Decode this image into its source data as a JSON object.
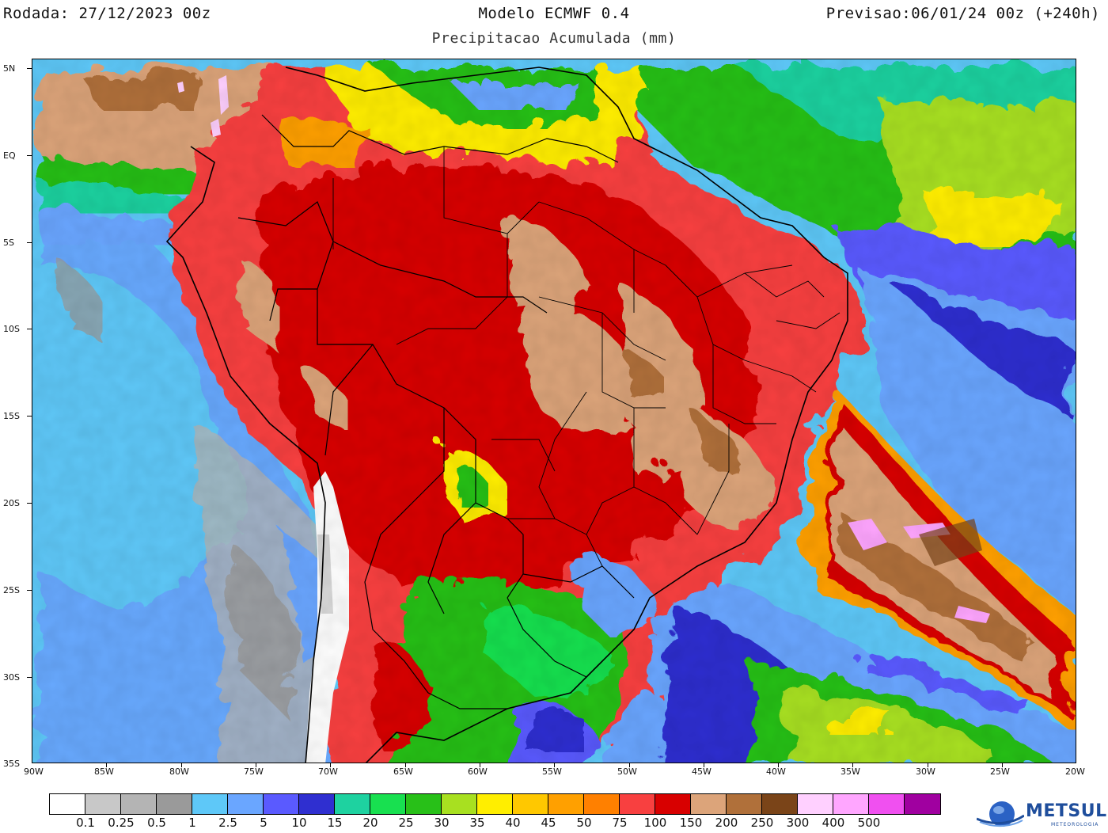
{
  "header": {
    "left": "Rodada: 27/12/2023 00z",
    "center": "Modelo ECMWF 0.4",
    "right": "Previsao:06/01/24 00z (+240h)",
    "subtitle": "Precipitacao Acumulada (mm)"
  },
  "map": {
    "lat_labels": [
      "5N",
      "EQ",
      "5S",
      "10S",
      "15S",
      "20S",
      "25S",
      "30S",
      "35S"
    ],
    "lon_labels": [
      "90W",
      "85W",
      "80W",
      "75W",
      "70W",
      "65W",
      "60W",
      "55W",
      "50W",
      "45W",
      "40W",
      "35W",
      "30W",
      "25W",
      "20W"
    ],
    "lat_range": [
      -35,
      5
    ],
    "lon_range": [
      -90,
      -20
    ],
    "features": [
      "precipitation-field",
      "country-borders",
      "state-borders",
      "coastline"
    ]
  },
  "colorbar": {
    "colors": [
      "#ffffff",
      "#c8c8c8",
      "#b4b4b4",
      "#9a9a9a",
      "#5ec8f8",
      "#6aa6ff",
      "#5a5aff",
      "#2f2fd0",
      "#1ed2a0",
      "#18e050",
      "#28c018",
      "#a8e020",
      "#ffee00",
      "#ffc800",
      "#ffa000",
      "#ff8000",
      "#f84040",
      "#d80000",
      "#dca47a",
      "#b0703a",
      "#7a4418",
      "#ffd0ff",
      "#ffa6ff",
      "#f050f0",
      "#a000a0"
    ],
    "labels": [
      "0.1",
      "0.25",
      "0.5",
      "1",
      "2.5",
      "5",
      "10",
      "15",
      "20",
      "25",
      "30",
      "35",
      "40",
      "45",
      "50",
      "75",
      "100",
      "150",
      "200",
      "250",
      "300",
      "400",
      "500"
    ]
  },
  "logo": {
    "text": "METSUL",
    "subtext": "METEOROLOGIA"
  }
}
